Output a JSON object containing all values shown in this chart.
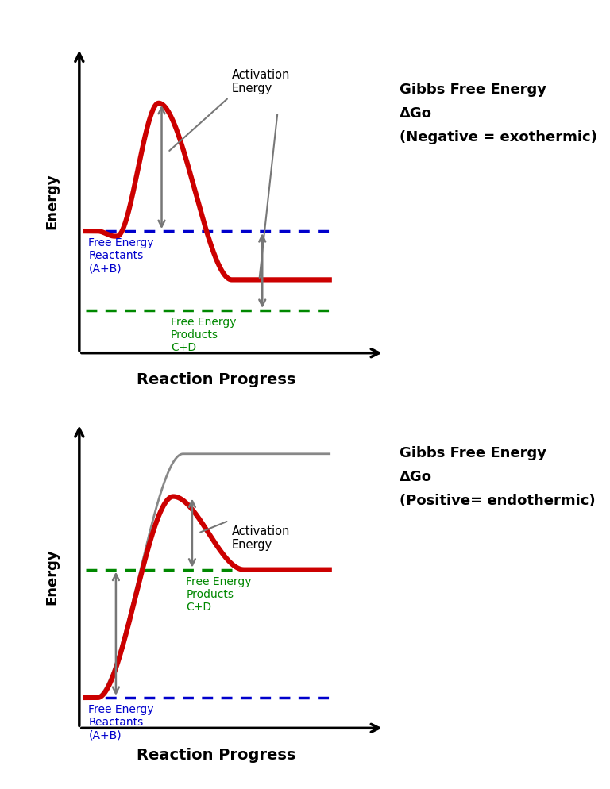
{
  "background_color": "#ffffff",
  "top_panel": {
    "reactant_level": 0.4,
    "product_level": 0.14,
    "peak_level": 0.82,
    "reactant_color": "#0000cc",
    "product_color": "#008800",
    "curve_color": "#cc0000",
    "arrow_color": "#777777",
    "reactant_label": "Free Energy\nReactants\n(A+B)",
    "product_label": "Free Energy\nProducts\nC+D",
    "activation_label": "Activation\nEnergy",
    "gibbs_line1": "Gibbs Free Energy",
    "gibbs_line2": "ΔGo",
    "gibbs_line3": "(Negative = exothermic)",
    "xlabel": "Reaction Progress",
    "ylabel": "Energy"
  },
  "bottom_panel": {
    "reactant_level": 0.1,
    "product_level": 0.52,
    "peak_level": 0.76,
    "gray_plateau": 0.9,
    "reactant_color": "#0000cc",
    "product_color": "#008800",
    "curve_color": "#cc0000",
    "arrow_color": "#777777",
    "reactant_label": "Free Energy\nReactants\n(A+B)",
    "product_label": "Free Energy\nProducts\nC+D",
    "activation_label": "Activation\nEnergy",
    "gibbs_line1": "Gibbs Free Energy",
    "gibbs_line2": "ΔGo",
    "gibbs_line3": "(Positive= endothermic)",
    "xlabel": "Reaction Progress",
    "ylabel": "Energy"
  }
}
